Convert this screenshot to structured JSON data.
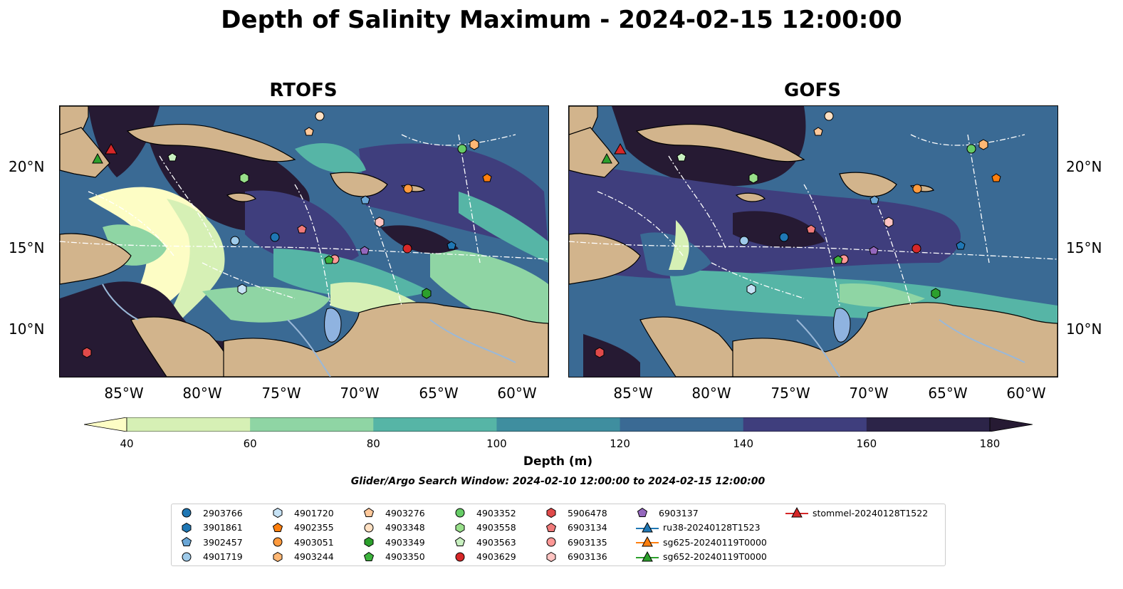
{
  "title": "Depth of Salinity Maximum - 2024-02-15 12:00:00",
  "panels": [
    {
      "title": "RTOFS"
    },
    {
      "title": "GOFS"
    }
  ],
  "lon_ticks": [
    "85°W",
    "80°W",
    "75°W",
    "70°W",
    "65°W",
    "60°W"
  ],
  "lat_ticks": [
    "20°N",
    "15°N",
    "10°N"
  ],
  "colorbar": {
    "label": "Depth (m)",
    "ticks": [
      "40",
      "60",
      "80",
      "100",
      "120",
      "140",
      "160",
      "180"
    ],
    "colors": [
      "#fdfdc5",
      "#d6f0b5",
      "#8fd5a4",
      "#56b5a6",
      "#3f8e9f",
      "#3a6a94",
      "#3f3e7d",
      "#2c2448",
      "#261a33"
    ]
  },
  "search_window": "Glider/Argo Search Window: 2024-02-10 12:00:00 to 2024-02-15 12:00:00",
  "legend": [
    {
      "label": "2903766",
      "marker": "circle",
      "color": "#1f77b4"
    },
    {
      "label": "3901861",
      "marker": "hexagon",
      "color": "#1f77b4"
    },
    {
      "label": "3902457",
      "marker": "pentagon",
      "color": "#6aa6d6"
    },
    {
      "label": "4901719",
      "marker": "circle",
      "color": "#9ecae9"
    },
    {
      "label": "4901720",
      "marker": "hexagon",
      "color": "#c6e2f5"
    },
    {
      "label": "4902355",
      "marker": "pentagon",
      "color": "#ff7f0e"
    },
    {
      "label": "4903051",
      "marker": "circle",
      "color": "#ff9a3d"
    },
    {
      "label": "4903244",
      "marker": "hexagon",
      "color": "#ffb774"
    },
    {
      "label": "4903276",
      "marker": "pentagon",
      "color": "#ffc89a"
    },
    {
      "label": "4903348",
      "marker": "circle",
      "color": "#ffe0c2"
    },
    {
      "label": "4903349",
      "marker": "hexagon",
      "color": "#2ca02c"
    },
    {
      "label": "4903350",
      "marker": "pentagon",
      "color": "#3db33d"
    },
    {
      "label": "4903352",
      "marker": "circle",
      "color": "#66cc66"
    },
    {
      "label": "4903558",
      "marker": "hexagon",
      "color": "#98df8a"
    },
    {
      "label": "4903563",
      "marker": "pentagon",
      "color": "#c8f0c0"
    },
    {
      "label": "4903629",
      "marker": "circle",
      "color": "#d62728"
    },
    {
      "label": "5906478",
      "marker": "hexagon",
      "color": "#e04a4a"
    },
    {
      "label": "6903134",
      "marker": "pentagon",
      "color": "#f07a7a"
    },
    {
      "label": "6903135",
      "marker": "circle",
      "color": "#ff9896"
    },
    {
      "label": "6903136",
      "marker": "hexagon",
      "color": "#ffc4c2"
    },
    {
      "label": "6903137",
      "marker": "pentagon",
      "color": "#9467bd"
    },
    {
      "label": "ru38-20240128T1523",
      "marker": "triangle-line",
      "color": "#1f77b4"
    },
    {
      "label": "sg625-20240119T0000",
      "marker": "triangle-line",
      "color": "#ff7f0e"
    },
    {
      "label": "sg652-20240119T0000",
      "marker": "triangle-line",
      "color": "#2ca02c"
    },
    {
      "label": "stommel-20240128T1522",
      "marker": "triangle-line",
      "color": "#d62728"
    }
  ],
  "colors": {
    "land": "#d2b48c",
    "lake": "#8fb3e0",
    "river": "#9ab8d8"
  }
}
